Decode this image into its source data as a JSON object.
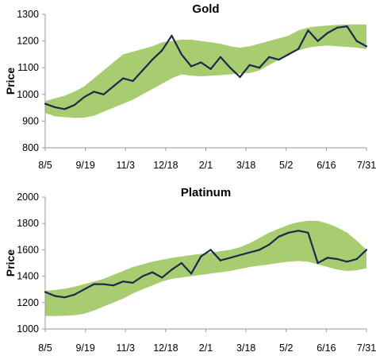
{
  "colors": {
    "band": "#a8cc70",
    "price_line": "#1b2a4a",
    "axis": "#9a9a9a",
    "text": "#000000"
  },
  "chart_data": [
    {
      "type": "line",
      "title": "Gold",
      "ylabel": "Price",
      "ylim": [
        800,
        1300
      ],
      "yticks": [
        800,
        900,
        1000,
        1100,
        1200,
        1300
      ],
      "x_tick_labels": [
        "8/5",
        "9/19",
        "11/3",
        "12/18",
        "2/1",
        "3/18",
        "5/2",
        "6/16",
        "7/31"
      ],
      "grid": false,
      "legend": "none",
      "band_upper": [
        975,
        985,
        995,
        1010,
        1030,
        1060,
        1090,
        1120,
        1150,
        1160,
        1170,
        1180,
        1195,
        1200,
        1205,
        1205,
        1200,
        1195,
        1190,
        1180,
        1175,
        1180,
        1190,
        1200,
        1210,
        1220,
        1240,
        1250,
        1255,
        1258,
        1260,
        1262,
        1262,
        1262
      ],
      "band_lower": [
        930,
        918,
        915,
        912,
        913,
        920,
        935,
        950,
        965,
        980,
        1000,
        1020,
        1040,
        1060,
        1075,
        1070,
        1068,
        1070,
        1072,
        1075,
        1078,
        1080,
        1090,
        1110,
        1130,
        1150,
        1165,
        1175,
        1180,
        1183,
        1180,
        1178,
        1175,
        1170
      ],
      "price": [
        965,
        952,
        945,
        960,
        990,
        1010,
        1000,
        1030,
        1060,
        1050,
        1090,
        1130,
        1165,
        1220,
        1150,
        1105,
        1120,
        1095,
        1140,
        1100,
        1065,
        1110,
        1100,
        1140,
        1130,
        1150,
        1170,
        1240,
        1200,
        1230,
        1250,
        1255,
        1200,
        1180
      ]
    },
    {
      "type": "line",
      "title": "Platinum",
      "ylabel": "Price",
      "ylim": [
        1000,
        2000
      ],
      "yticks": [
        1000,
        1200,
        1400,
        1600,
        1800,
        2000
      ],
      "x_tick_labels": [
        "8/5",
        "9/19",
        "11/3",
        "12/18",
        "2/1",
        "3/18",
        "5/2",
        "6/16",
        "7/31"
      ],
      "grid": false,
      "legend": "none",
      "band_upper": [
        1290,
        1295,
        1305,
        1320,
        1340,
        1360,
        1380,
        1410,
        1440,
        1470,
        1490,
        1510,
        1525,
        1540,
        1550,
        1560,
        1570,
        1580,
        1590,
        1600,
        1620,
        1650,
        1690,
        1730,
        1760,
        1790,
        1810,
        1820,
        1820,
        1800,
        1770,
        1730,
        1670,
        1600
      ],
      "band_lower": [
        1100,
        1098,
        1100,
        1105,
        1115,
        1140,
        1170,
        1200,
        1230,
        1270,
        1300,
        1330,
        1360,
        1380,
        1390,
        1400,
        1410,
        1420,
        1430,
        1440,
        1455,
        1470,
        1480,
        1490,
        1500,
        1510,
        1515,
        1510,
        1490,
        1470,
        1450,
        1440,
        1445,
        1460
      ],
      "price": [
        1280,
        1250,
        1240,
        1260,
        1300,
        1340,
        1340,
        1330,
        1360,
        1350,
        1400,
        1430,
        1390,
        1450,
        1500,
        1420,
        1550,
        1600,
        1520,
        1540,
        1560,
        1580,
        1600,
        1640,
        1700,
        1730,
        1745,
        1730,
        1500,
        1540,
        1530,
        1510,
        1530,
        1600
      ]
    }
  ]
}
